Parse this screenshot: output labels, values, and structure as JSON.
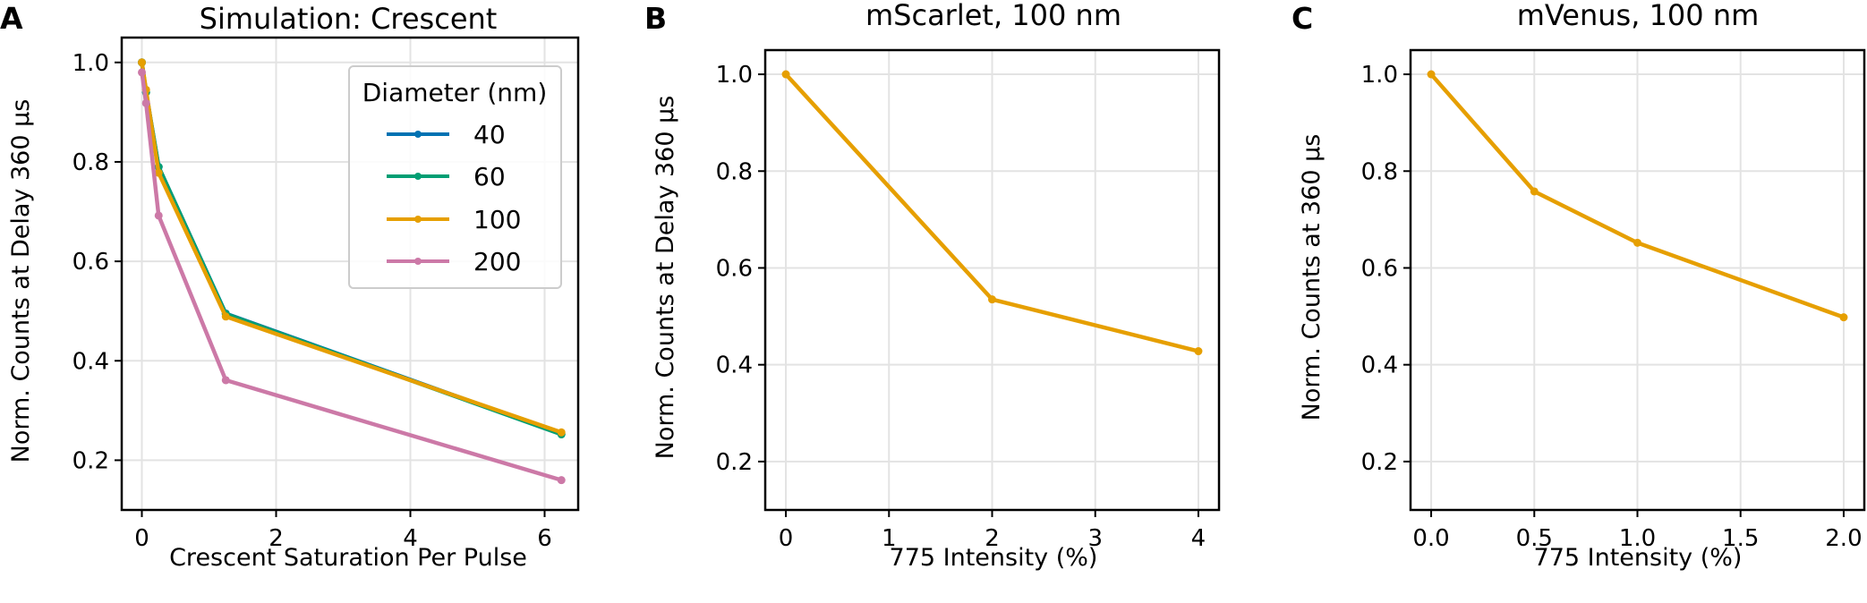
{
  "colors": {
    "40": "#0072B2",
    "60": "#009E73",
    "100": "#E69F00",
    "200": "#CC79A7",
    "grid": "#e3e3e3",
    "axis": "#000000"
  },
  "chart_data": [
    {
      "panel_letter": "A",
      "type": "line",
      "title": "Simulation: Crescent",
      "xlabel": "Crescent Saturation Per Pulse",
      "ylabel": "Norm. Counts at Delay 360 µs",
      "xlim": [
        -0.3,
        6.5
      ],
      "ylim": [
        0.1,
        1.05
      ],
      "xticks": [
        0,
        2,
        4,
        6
      ],
      "xtick_labels": [
        "0",
        "2",
        "4",
        "6"
      ],
      "yticks": [
        0.2,
        0.4,
        0.6,
        0.8,
        1.0
      ],
      "ytick_labels": [
        "0.2",
        "0.4",
        "0.6",
        "0.8",
        "1.0"
      ],
      "grid": true,
      "legend": {
        "title": "Diameter (nm)",
        "placement": "top-right",
        "entries": [
          "40",
          "60",
          "100",
          "200"
        ]
      },
      "series": [
        {
          "name": "40",
          "color": "#0072B2",
          "x": [
            0,
            0.0625,
            0.25,
            1.25,
            6.25
          ],
          "y": [
            1.0,
            0.94,
            0.79,
            0.495,
            0.253
          ]
        },
        {
          "name": "60",
          "color": "#009E73",
          "x": [
            0,
            0.0625,
            0.25,
            1.25,
            6.25
          ],
          "y": [
            1.0,
            0.94,
            0.79,
            0.494,
            0.252
          ]
        },
        {
          "name": "100",
          "color": "#E69F00",
          "x": [
            0,
            0.0625,
            0.25,
            1.25,
            6.25
          ],
          "y": [
            1.0,
            0.945,
            0.778,
            0.489,
            0.256
          ]
        },
        {
          "name": "200",
          "color": "#CC79A7",
          "x": [
            0,
            0.0625,
            0.25,
            1.25,
            6.25
          ],
          "y": [
            0.98,
            0.918,
            0.692,
            0.361,
            0.16
          ]
        }
      ]
    },
    {
      "panel_letter": "B",
      "type": "line",
      "title": "mScarlet, 100 nm",
      "xlabel": "775 Intensity (%)",
      "ylabel": "Norm. Counts at Delay 360 µs",
      "xlim": [
        -0.2,
        4.2
      ],
      "ylim": [
        0.1,
        1.05
      ],
      "xticks": [
        0,
        1,
        2,
        3,
        4
      ],
      "xtick_labels": [
        "0",
        "1",
        "2",
        "3",
        "4"
      ],
      "yticks": [
        0.2,
        0.4,
        0.6,
        0.8,
        1.0
      ],
      "ytick_labels": [
        "0.2",
        "0.4",
        "0.6",
        "0.8",
        "1.0"
      ],
      "grid": true,
      "series": [
        {
          "color": "#E69F00",
          "x": [
            0,
            2,
            4
          ],
          "y": [
            1.0,
            0.535,
            0.428
          ]
        }
      ]
    },
    {
      "panel_letter": "C",
      "type": "line",
      "title": "mVenus, 100 nm",
      "xlabel": "775 Intensity (%)",
      "ylabel": "Norm. Counts at 360 µs",
      "xlim": [
        -0.1,
        2.1
      ],
      "ylim": [
        0.1,
        1.05
      ],
      "xticks": [
        0,
        0.5,
        1.0,
        1.5,
        2.0
      ],
      "xtick_labels": [
        "0.0",
        "0.5",
        "1.0",
        "1.5",
        "2.0"
      ],
      "yticks": [
        0.2,
        0.4,
        0.6,
        0.8,
        1.0
      ],
      "ytick_labels": [
        "0.2",
        "0.4",
        "0.6",
        "0.8",
        "1.0"
      ],
      "grid": true,
      "series": [
        {
          "color": "#E69F00",
          "x": [
            0,
            0.5,
            1.0,
            2.0
          ],
          "y": [
            1.0,
            0.758,
            0.652,
            0.498
          ]
        }
      ]
    }
  ]
}
